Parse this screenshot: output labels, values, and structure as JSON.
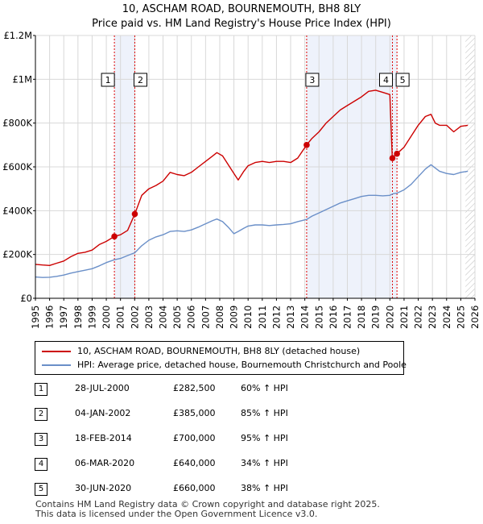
{
  "header": {
    "title": "10, ASCHAM ROAD, BOURNEMOUTH, BH8 8LY",
    "subtitle": "Price paid vs. HM Land Registry's House Price Index (HPI)"
  },
  "colors": {
    "property": "#cc0000",
    "hpi": "#6a8fc8",
    "shade": "#eef2fb",
    "marker_line": "#dd0000",
    "hatch": "#bbbbbb"
  },
  "chart_data": {
    "type": "line",
    "title": "10, ASCHAM ROAD, BOURNEMOUTH, BH8 8LY",
    "subtitle": "Price paid vs. HM Land Registry's House Price Index (HPI)",
    "xlim": [
      1995,
      2026
    ],
    "ylim": [
      0,
      1200000
    ],
    "x_ticks": [
      "1995",
      "1996",
      "1997",
      "1998",
      "1999",
      "2000",
      "2001",
      "2002",
      "2003",
      "2004",
      "2005",
      "2006",
      "2007",
      "2008",
      "2009",
      "2010",
      "2011",
      "2012",
      "2013",
      "2014",
      "2015",
      "2016",
      "2017",
      "2018",
      "2019",
      "2020",
      "2021",
      "2022",
      "2023",
      "2024",
      "2025",
      "2026"
    ],
    "y_ticks": [
      {
        "value": 0,
        "label": "£0"
      },
      {
        "value": 200000,
        "label": "£200K"
      },
      {
        "value": 400000,
        "label": "£400K"
      },
      {
        "value": 600000,
        "label": "£600K"
      },
      {
        "value": 800000,
        "label": "£800K"
      },
      {
        "value": 1000000,
        "label": "£1M"
      },
      {
        "value": 1200000,
        "label": "£1.2M"
      }
    ],
    "grid": true,
    "shaded_periods": [
      [
        2000.57,
        2002.01
      ],
      [
        2014.13,
        2020.5
      ]
    ],
    "hatched_from": 2025.33,
    "series": [
      {
        "name": "10, ASCHAM ROAD, BOURNEMOUTH, BH8 8LY (detached house)",
        "x": [
          1995.0,
          1995.5,
          1996.0,
          1996.5,
          1997.0,
          1997.5,
          1998.0,
          1998.5,
          1999.0,
          1999.5,
          2000.0,
          2000.57,
          2001.0,
          2001.5,
          2002.01,
          2002.5,
          2003.0,
          2003.5,
          2004.0,
          2004.5,
          2005.0,
          2005.5,
          2006.0,
          2006.5,
          2007.0,
          2007.5,
          2007.8,
          2008.2,
          2008.6,
          2009.0,
          2009.3,
          2009.7,
          2010.0,
          2010.5,
          2011.0,
          2011.5,
          2012.0,
          2012.5,
          2013.0,
          2013.5,
          2014.13,
          2014.5,
          2015.0,
          2015.5,
          2016.0,
          2016.5,
          2017.0,
          2017.5,
          2018.0,
          2018.5,
          2019.0,
          2019.5,
          2020.0,
          2020.17,
          2020.3,
          2020.5,
          2021.0,
          2021.5,
          2022.0,
          2022.5,
          2022.9,
          2023.2,
          2023.5,
          2024.0,
          2024.5,
          2025.0,
          2025.5
        ],
        "y": [
          155000,
          152000,
          150000,
          160000,
          170000,
          190000,
          205000,
          210000,
          220000,
          245000,
          260000,
          282500,
          290000,
          310000,
          385000,
          470000,
          500000,
          515000,
          535000,
          575000,
          565000,
          560000,
          575000,
          600000,
          625000,
          650000,
          665000,
          650000,
          610000,
          570000,
          540000,
          580000,
          605000,
          620000,
          625000,
          620000,
          625000,
          625000,
          620000,
          640000,
          700000,
          730000,
          760000,
          800000,
          830000,
          860000,
          880000,
          900000,
          920000,
          945000,
          950000,
          940000,
          930000,
          640000,
          650000,
          660000,
          690000,
          740000,
          790000,
          830000,
          840000,
          800000,
          790000,
          790000,
          760000,
          785000,
          790000
        ]
      },
      {
        "name": "HPI: Average price, detached house, Bournemouth Christchurch and Poole",
        "x": [
          1995.0,
          1995.5,
          1996.0,
          1996.5,
          1997.0,
          1997.5,
          1998.0,
          1998.5,
          1999.0,
          1999.5,
          2000.0,
          2000.57,
          2001.0,
          2001.5,
          2002.01,
          2002.5,
          2003.0,
          2003.5,
          2004.0,
          2004.5,
          2005.0,
          2005.5,
          2006.0,
          2006.5,
          2007.0,
          2007.5,
          2007.8,
          2008.2,
          2008.6,
          2009.0,
          2009.3,
          2009.7,
          2010.0,
          2010.5,
          2011.0,
          2011.5,
          2012.0,
          2012.5,
          2013.0,
          2013.5,
          2014.13,
          2014.5,
          2015.0,
          2015.5,
          2016.0,
          2016.5,
          2017.0,
          2017.5,
          2018.0,
          2018.5,
          2019.0,
          2019.5,
          2020.0,
          2020.17,
          2020.3,
          2020.5,
          2021.0,
          2021.5,
          2022.0,
          2022.5,
          2022.9,
          2023.2,
          2023.5,
          2024.0,
          2024.5,
          2025.0,
          2025.5
        ],
        "y": [
          97000,
          95000,
          96000,
          100000,
          106000,
          115000,
          122000,
          128000,
          135000,
          148000,
          163000,
          176000,
          182000,
          195000,
          208000,
          240000,
          265000,
          280000,
          290000,
          305000,
          308000,
          305000,
          312000,
          325000,
          340000,
          355000,
          362000,
          350000,
          325000,
          295000,
          305000,
          320000,
          330000,
          335000,
          335000,
          332000,
          335000,
          337000,
          340000,
          350000,
          360000,
          375000,
          390000,
          405000,
          420000,
          435000,
          445000,
          455000,
          465000,
          470000,
          470000,
          468000,
          470000,
          476000,
          478000,
          480000,
          495000,
          520000,
          555000,
          590000,
          610000,
          595000,
          580000,
          570000,
          565000,
          575000,
          580000
        ]
      }
    ],
    "transactions": [
      {
        "label": "1",
        "x": 2000.57,
        "y": 282500
      },
      {
        "label": "2",
        "x": 2002.01,
        "y": 385000
      },
      {
        "label": "3",
        "x": 2014.13,
        "y": 700000
      },
      {
        "label": "4",
        "x": 2020.18,
        "y": 640000
      },
      {
        "label": "5",
        "x": 2020.5,
        "y": 660000
      }
    ]
  },
  "legend": {
    "property": "10, ASCHAM ROAD, BOURNEMOUTH, BH8 8LY (detached house)",
    "hpi": "HPI: Average price, detached house, Bournemouth Christchurch and Poole"
  },
  "transactions_table": [
    {
      "num": "1",
      "date": "28-JUL-2000",
      "price": "£282,500",
      "hpi": "60% ↑ HPI"
    },
    {
      "num": "2",
      "date": "04-JAN-2002",
      "price": "£385,000",
      "hpi": "85% ↑ HPI"
    },
    {
      "num": "3",
      "date": "18-FEB-2014",
      "price": "£700,000",
      "hpi": "95% ↑ HPI"
    },
    {
      "num": "4",
      "date": "06-MAR-2020",
      "price": "£640,000",
      "hpi": "34% ↑ HPI"
    },
    {
      "num": "5",
      "date": "30-JUN-2020",
      "price": "£660,000",
      "hpi": "38% ↑ HPI"
    }
  ],
  "footer": {
    "line1": "Contains HM Land Registry data © Crown copyright and database right 2025.",
    "line2": "This data is licensed under the Open Government Licence v3.0."
  }
}
